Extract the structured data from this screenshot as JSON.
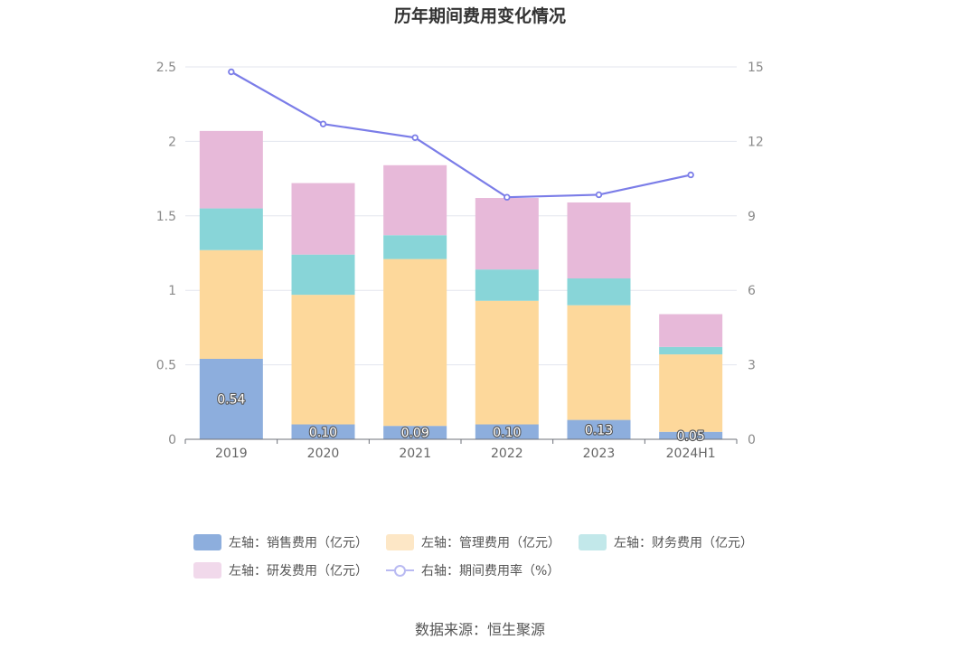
{
  "chart_data": {
    "type": "bar",
    "title": "历年期间费用变化情况",
    "categories": [
      "2019",
      "2020",
      "2021",
      "2022",
      "2023",
      "2024H1"
    ],
    "stacked": true,
    "series": [
      {
        "name": "左轴：销售费用（亿元）",
        "axis": "left",
        "values": [
          0.54,
          0.1,
          0.09,
          0.1,
          0.13,
          0.05
        ],
        "color": "#8daedd",
        "show_labels": true
      },
      {
        "name": "左轴：管理费用（亿元）",
        "axis": "left",
        "values": [
          0.73,
          0.87,
          1.12,
          0.83,
          0.77,
          0.52
        ],
        "color": "#fdd89b"
      },
      {
        "name": "左轴：财务费用（亿元）",
        "axis": "left",
        "values": [
          0.28,
          0.27,
          0.16,
          0.21,
          0.18,
          0.05
        ],
        "color": "#88d5d8"
      },
      {
        "name": "左轴：研发费用（亿元）",
        "axis": "left",
        "values": [
          0.52,
          0.48,
          0.47,
          0.48,
          0.51,
          0.22
        ],
        "color": "#e7b9d9"
      }
    ],
    "line_series": [
      {
        "name": "右轴：期间费用率（%）",
        "axis": "right",
        "values": [
          14.8,
          12.7,
          12.15,
          9.75,
          9.85,
          10.65
        ],
        "color": "#7b7de8"
      }
    ],
    "data_labels": [
      "0.54",
      "0.10",
      "0.09",
      "0.10",
      "0.13",
      "0.05"
    ],
    "left_axis": {
      "min": 0,
      "max": 2.5,
      "ticks": [
        "0",
        "0.5",
        "1",
        "1.5",
        "2",
        "2.5"
      ]
    },
    "right_axis": {
      "min": 0,
      "max": 15,
      "ticks": [
        "0",
        "3",
        "6",
        "9",
        "12",
        "15"
      ]
    },
    "legend_position": "bottom"
  },
  "legend_swatch_colors": [
    "#8daedd",
    "#fde7c6",
    "#c2e8ea",
    "#f1d9eb"
  ],
  "source": "数据来源：恒生聚源"
}
